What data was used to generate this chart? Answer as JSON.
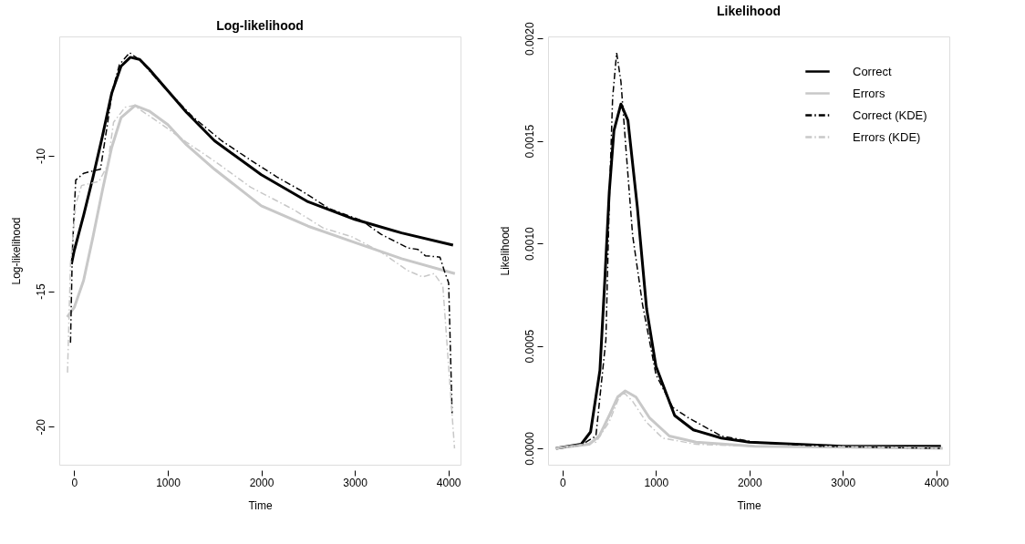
{
  "chart_data": [
    {
      "type": "line",
      "title": "Log-likelihood",
      "xlabel": "Time",
      "ylabel": "Log-likelihood",
      "xlim": [
        -160,
        4130
      ],
      "ylim": [
        -21.4,
        -5.6
      ],
      "xticks": [
        0,
        1000,
        2000,
        3000,
        4000
      ],
      "yticks": [
        -10,
        -15,
        -20
      ],
      "legend": false,
      "grid": false,
      "marker": "none",
      "series": [
        {
          "color": "#000000",
          "line_style": "solid",
          "x": [
            -30,
            0,
            100,
            200,
            300,
            400,
            500,
            600,
            700,
            800,
            1000,
            1200,
            1500,
            2000,
            2500,
            3000,
            3500,
            4050
          ],
          "values": [
            -14.0,
            -13.5,
            -12.2,
            -10.8,
            -9.3,
            -7.7,
            -6.7,
            -6.37,
            -6.45,
            -6.8,
            -7.6,
            -8.4,
            -9.45,
            -10.7,
            -11.7,
            -12.35,
            -12.85,
            -13.3
          ]
        },
        {
          "color": "#c8c8c8",
          "line_style": "solid",
          "x": [
            -75,
            0,
            100,
            200,
            300,
            400,
            500,
            650,
            800,
            1000,
            1200,
            1500,
            2000,
            2500,
            3000,
            3500,
            4070
          ],
          "values": [
            -15.95,
            -15.6,
            -14.6,
            -13.0,
            -11.3,
            -9.7,
            -8.6,
            -8.15,
            -8.35,
            -8.85,
            -9.6,
            -10.5,
            -11.85,
            -12.6,
            -13.2,
            -13.8,
            -14.35
          ]
        },
        {
          "color": "#000000",
          "line_style": "dashed",
          "x": [
            -40,
            -20,
            16,
            100,
            202,
            280,
            358,
            405,
            483,
            592,
            701,
            950,
            1262,
            1573,
            1885,
            2165,
            2446,
            2726,
            3072,
            3281,
            3567,
            3676,
            3754,
            3910,
            3956,
            4003,
            4040
          ],
          "values": [
            -16.9,
            -13.5,
            -10.9,
            -10.65,
            -10.56,
            -10.5,
            -8.77,
            -7.65,
            -6.64,
            -6.2,
            -6.47,
            -7.43,
            -8.55,
            -9.44,
            -10.16,
            -10.78,
            -11.33,
            -11.95,
            -12.39,
            -12.9,
            -13.4,
            -13.46,
            -13.69,
            -13.74,
            -14.24,
            -14.69,
            -19.5
          ]
        },
        {
          "color": "#c8c8c8",
          "line_style": "dashed",
          "x": [
            -72,
            -40,
            16,
            78,
            265,
            358,
            420,
            545,
            639,
            950,
            1200,
            1500,
            1885,
            2352,
            2664,
            2976,
            3287,
            3567,
            3723,
            3847,
            3941,
            4066
          ],
          "values": [
            -18.0,
            -14.0,
            -11.8,
            -11.1,
            -10.95,
            -10.34,
            -8.77,
            -8.21,
            -8.15,
            -8.88,
            -9.5,
            -10.2,
            -11.16,
            -12.0,
            -12.67,
            -13.0,
            -13.57,
            -14.24,
            -14.47,
            -14.35,
            -14.8,
            -20.8
          ]
        }
      ]
    },
    {
      "type": "line",
      "title": "Likelihood",
      "xlabel": "Time",
      "ylabel": "Likelihood",
      "xlim": [
        -155,
        4140
      ],
      "ylim": [
        -8e-05,
        0.00201
      ],
      "xticks": [
        0,
        1000,
        2000,
        3000,
        4000
      ],
      "yticks": [
        {
          "value": 0,
          "label": "0.0000"
        },
        {
          "value": 0.0005,
          "label": "0.0005"
        },
        {
          "value": 0.001,
          "label": "0.0010"
        },
        {
          "value": 0.0015,
          "label": "0.0015"
        },
        {
          "value": 0.002,
          "label": "0.0020"
        }
      ],
      "legend": "top right",
      "grid": false,
      "marker": "none",
      "series": [
        {
          "name": "Correct",
          "color": "#000000",
          "line_style": "solid",
          "x": [
            -70,
            200,
            300,
            400,
            450,
            500,
            550,
            625,
            700,
            800,
            900,
            1000,
            1200,
            1400,
            1700,
            2000,
            2500,
            3000,
            4050
          ],
          "values": [
            0,
            2e-05,
            8e-05,
            0.00038,
            0.0008,
            0.00125,
            0.00155,
            0.00168,
            0.0016,
            0.00118,
            0.00068,
            0.0004,
            0.00016,
            9e-05,
            5e-05,
            3e-05,
            2e-05,
            1e-05,
            1e-05
          ]
        },
        {
          "name": "Errors",
          "color": "#c8c8c8",
          "line_style": "solid",
          "x": [
            -71,
            286,
            393,
            500,
            589,
            671,
            786,
            929,
            1143,
            1429,
            2057,
            4070
          ],
          "values": [
            0,
            2e-05,
            6e-05,
            0.00016,
            0.00025,
            0.00028,
            0.00025,
            0.00015,
            6e-05,
            3e-05,
            1e-05,
            0
          ]
        },
        {
          "name": "Correct (KDE)",
          "color": "#000000",
          "line_style": "dashed",
          "x": [
            -30,
            214,
            357,
            464,
            500,
            536,
            579,
            625,
            679,
            750,
            857,
            1000,
            1179,
            1343,
            1700,
            2057,
            2771,
            4039
          ],
          "values": [
            0,
            2e-05,
            6e-05,
            0.00053,
            0.0012,
            0.00171,
            0.00193,
            0.00179,
            0.00146,
            0.00104,
            0.0007,
            0.00036,
            0.0002,
            0.00015,
            6e-05,
            3e-05,
            1e-05,
            0
          ]
        },
        {
          "name": "Errors (KDE)",
          "color": "#c8c8c8",
          "line_style": "dashed",
          "x": [
            -30,
            357,
            500,
            607,
            661,
            750,
            893,
            1071,
            1429,
            2057,
            4060
          ],
          "values": [
            0,
            3e-05,
            0.00013,
            0.00025,
            0.00027,
            0.00023,
            0.00013,
            5e-05,
            2e-05,
            1e-05,
            0
          ]
        }
      ]
    }
  ]
}
